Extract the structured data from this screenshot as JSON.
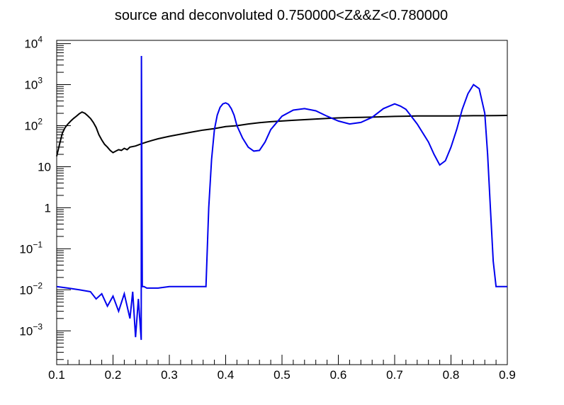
{
  "chart_data": {
    "type": "line",
    "title": "source and deconvoluted 0.750000<Z&&Z<0.780000",
    "xlabel": "",
    "ylabel": "",
    "xlim": [
      0.1,
      0.9
    ],
    "ylim": [
      0.00015,
      12000
    ],
    "y_scale": "log",
    "grid": false,
    "legend": "none",
    "x_ticks": [
      {
        "value": 0.1,
        "label": "0.1"
      },
      {
        "value": 0.2,
        "label": "0.2"
      },
      {
        "value": 0.3,
        "label": "0.3"
      },
      {
        "value": 0.4,
        "label": "0.4"
      },
      {
        "value": 0.5,
        "label": "0.5"
      },
      {
        "value": 0.6,
        "label": "0.6"
      },
      {
        "value": 0.7,
        "label": "0.7"
      },
      {
        "value": 0.8,
        "label": "0.8"
      },
      {
        "value": 0.9,
        "label": "0.9"
      }
    ],
    "y_ticks": [
      {
        "value": 0.001,
        "base": "10",
        "exp": "−3"
      },
      {
        "value": 0.01,
        "base": "10",
        "exp": "−2"
      },
      {
        "value": 0.1,
        "base": "10",
        "exp": "−1"
      },
      {
        "value": 1,
        "base": "1",
        "exp": ""
      },
      {
        "value": 10,
        "base": "10",
        "exp": ""
      },
      {
        "value": 100,
        "base": "10",
        "exp": "2"
      },
      {
        "value": 1000,
        "base": "10",
        "exp": "3"
      },
      {
        "value": 10000,
        "base": "10",
        "exp": "4"
      }
    ],
    "series": [
      {
        "color": "#000000",
        "x": [
          0.1,
          0.105,
          0.11,
          0.115,
          0.12,
          0.125,
          0.13,
          0.135,
          0.14,
          0.145,
          0.15,
          0.155,
          0.16,
          0.165,
          0.17,
          0.175,
          0.18,
          0.185,
          0.19,
          0.195,
          0.2,
          0.205,
          0.21,
          0.215,
          0.22,
          0.225,
          0.23,
          0.24,
          0.25,
          0.26,
          0.27,
          0.28,
          0.3,
          0.32,
          0.34,
          0.36,
          0.38,
          0.4,
          0.42,
          0.44,
          0.46,
          0.48,
          0.5,
          0.52,
          0.54,
          0.56,
          0.58,
          0.6,
          0.62,
          0.64,
          0.66,
          0.68,
          0.7,
          0.72,
          0.74,
          0.76,
          0.78,
          0.8,
          0.82,
          0.84,
          0.86,
          0.88,
          0.9
        ],
        "y": [
          18,
          35,
          65,
          90,
          110,
          130,
          150,
          170,
          195,
          215,
          200,
          175,
          150,
          120,
          90,
          60,
          45,
          35,
          30,
          25,
          22,
          24,
          26,
          25,
          28,
          26,
          30,
          32,
          36,
          40,
          44,
          48,
          55,
          62,
          70,
          78,
          85,
          95,
          100,
          110,
          118,
          125,
          130,
          135,
          140,
          145,
          150,
          155,
          158,
          160,
          162,
          165,
          168,
          170,
          172,
          172,
          172,
          172,
          174,
          175,
          175,
          176,
          178
        ]
      },
      {
        "color": "#0000ee",
        "x": [
          0.1,
          0.12,
          0.14,
          0.16,
          0.17,
          0.18,
          0.19,
          0.2,
          0.21,
          0.22,
          0.23,
          0.235,
          0.24,
          0.245,
          0.25,
          0.2505,
          0.252,
          0.255,
          0.26,
          0.27,
          0.28,
          0.3,
          0.32,
          0.34,
          0.365,
          0.37,
          0.375,
          0.38,
          0.385,
          0.39,
          0.395,
          0.4,
          0.405,
          0.41,
          0.415,
          0.42,
          0.43,
          0.44,
          0.45,
          0.46,
          0.47,
          0.48,
          0.5,
          0.52,
          0.54,
          0.56,
          0.58,
          0.6,
          0.62,
          0.64,
          0.66,
          0.68,
          0.7,
          0.71,
          0.72,
          0.74,
          0.76,
          0.77,
          0.78,
          0.79,
          0.8,
          0.81,
          0.82,
          0.83,
          0.84,
          0.85,
          0.86,
          0.865,
          0.87,
          0.875,
          0.88,
          0.885,
          0.9
        ],
        "y": [
          0.012,
          0.011,
          0.01,
          0.009,
          0.006,
          0.008,
          0.004,
          0.007,
          0.003,
          0.008,
          0.002,
          0.009,
          0.0007,
          0.006,
          0.0006,
          5000,
          0.012,
          0.012,
          0.011,
          0.011,
          0.011,
          0.012,
          0.012,
          0.012,
          0.012,
          1,
          15,
          80,
          180,
          280,
          340,
          360,
          330,
          260,
          180,
          100,
          50,
          30,
          24,
          25,
          40,
          80,
          170,
          240,
          260,
          230,
          170,
          130,
          110,
          120,
          160,
          260,
          340,
          300,
          250,
          110,
          40,
          20,
          11,
          14,
          30,
          80,
          250,
          600,
          1000,
          800,
          200,
          20,
          1,
          0.05,
          0.012,
          0.012,
          0.012
        ]
      }
    ]
  }
}
